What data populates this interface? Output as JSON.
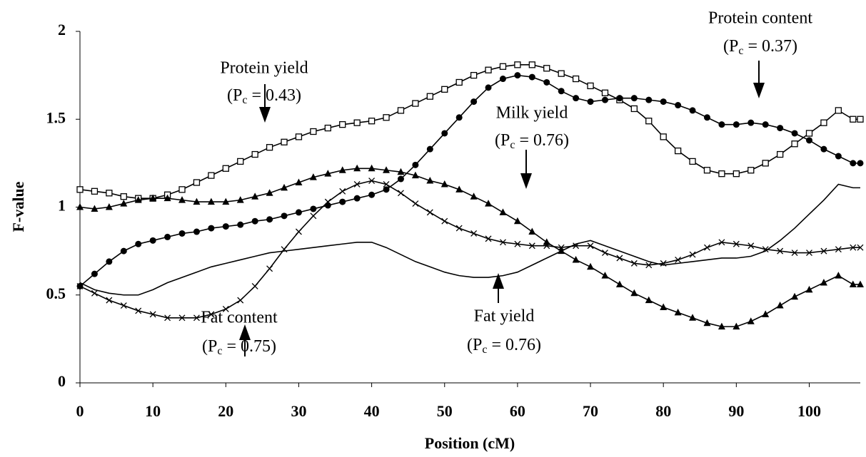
{
  "chart_data": {
    "type": "line",
    "x_label": "Position (cM)",
    "y_label": "F-value",
    "x": [
      0,
      2,
      4,
      6,
      8,
      10,
      12,
      14,
      16,
      18,
      20,
      22,
      24,
      26,
      28,
      30,
      32,
      34,
      36,
      38,
      40,
      42,
      44,
      46,
      48,
      50,
      52,
      54,
      56,
      58,
      60,
      62,
      64,
      66,
      68,
      70,
      72,
      74,
      76,
      78,
      80,
      82,
      84,
      86,
      88,
      90,
      92,
      94,
      96,
      98,
      100,
      102,
      104,
      106,
      107
    ],
    "xlim": [
      0,
      107
    ],
    "xticks": [
      0,
      10,
      20,
      30,
      40,
      50,
      60,
      70,
      80,
      90,
      100
    ],
    "ylim": [
      0,
      2
    ],
    "yticks": [
      0,
      0.5,
      1,
      1.5,
      2
    ],
    "series": [
      {
        "name": "Protein yield",
        "color": "#000000",
        "marker": "square",
        "values": [
          1.1,
          1.09,
          1.08,
          1.06,
          1.05,
          1.05,
          1.07,
          1.1,
          1.14,
          1.18,
          1.22,
          1.26,
          1.3,
          1.34,
          1.37,
          1.4,
          1.43,
          1.45,
          1.47,
          1.48,
          1.49,
          1.51,
          1.55,
          1.59,
          1.63,
          1.67,
          1.71,
          1.75,
          1.78,
          1.8,
          1.81,
          1.81,
          1.79,
          1.76,
          1.73,
          1.69,
          1.65,
          1.61,
          1.56,
          1.49,
          1.4,
          1.32,
          1.26,
          1.21,
          1.19,
          1.19,
          1.21,
          1.25,
          1.3,
          1.36,
          1.42,
          1.48,
          1.55,
          1.5,
          1.5
        ]
      },
      {
        "name": "Protein content",
        "color": "#000000",
        "marker": "circle",
        "values": [
          0.55,
          0.62,
          0.69,
          0.75,
          0.79,
          0.81,
          0.83,
          0.85,
          0.86,
          0.88,
          0.89,
          0.9,
          0.92,
          0.93,
          0.95,
          0.97,
          0.99,
          1.01,
          1.03,
          1.05,
          1.07,
          1.1,
          1.16,
          1.24,
          1.33,
          1.42,
          1.51,
          1.6,
          1.68,
          1.73,
          1.75,
          1.74,
          1.71,
          1.66,
          1.62,
          1.6,
          1.61,
          1.62,
          1.62,
          1.61,
          1.6,
          1.58,
          1.55,
          1.51,
          1.47,
          1.47,
          1.48,
          1.47,
          1.45,
          1.42,
          1.38,
          1.33,
          1.29,
          1.25,
          1.25
        ]
      },
      {
        "name": "Milk yield",
        "color": "#000000",
        "marker": "triangle",
        "values": [
          1.0,
          0.99,
          1.0,
          1.02,
          1.04,
          1.05,
          1.05,
          1.04,
          1.03,
          1.03,
          1.03,
          1.04,
          1.06,
          1.08,
          1.11,
          1.14,
          1.17,
          1.19,
          1.21,
          1.22,
          1.22,
          1.21,
          1.2,
          1.18,
          1.15,
          1.13,
          1.1,
          1.06,
          1.02,
          0.97,
          0.92,
          0.86,
          0.8,
          0.75,
          0.7,
          0.66,
          0.61,
          0.56,
          0.51,
          0.47,
          0.43,
          0.4,
          0.37,
          0.34,
          0.32,
          0.32,
          0.35,
          0.39,
          0.44,
          0.49,
          0.53,
          0.57,
          0.61,
          0.56,
          0.56
        ]
      },
      {
        "name": "Fat content",
        "color": "#000000",
        "marker": "cross",
        "values": [
          0.55,
          0.51,
          0.47,
          0.44,
          0.41,
          0.39,
          0.37,
          0.37,
          0.37,
          0.39,
          0.42,
          0.47,
          0.55,
          0.65,
          0.76,
          0.86,
          0.95,
          1.03,
          1.09,
          1.13,
          1.15,
          1.13,
          1.08,
          1.02,
          0.97,
          0.92,
          0.88,
          0.85,
          0.82,
          0.8,
          0.79,
          0.78,
          0.78,
          0.77,
          0.78,
          0.78,
          0.74,
          0.71,
          0.68,
          0.67,
          0.68,
          0.7,
          0.73,
          0.77,
          0.8,
          0.79,
          0.78,
          0.76,
          0.75,
          0.74,
          0.74,
          0.75,
          0.76,
          0.77,
          0.77
        ]
      },
      {
        "name": "Fat yield",
        "color": "#000000",
        "marker": "none",
        "values": [
          0.57,
          0.53,
          0.51,
          0.5,
          0.5,
          0.53,
          0.57,
          0.6,
          0.63,
          0.66,
          0.68,
          0.7,
          0.72,
          0.74,
          0.75,
          0.76,
          0.77,
          0.78,
          0.79,
          0.8,
          0.8,
          0.77,
          0.73,
          0.69,
          0.66,
          0.63,
          0.61,
          0.6,
          0.6,
          0.61,
          0.63,
          0.67,
          0.71,
          0.75,
          0.79,
          0.81,
          0.78,
          0.75,
          0.72,
          0.69,
          0.67,
          0.68,
          0.69,
          0.7,
          0.71,
          0.71,
          0.72,
          0.75,
          0.81,
          0.88,
          0.96,
          1.04,
          1.13,
          1.11,
          1.11
        ]
      }
    ],
    "annotations": [
      {
        "series": 0,
        "label": [
          "(P",
          "c",
          " = 0.43)"
        ]
      },
      {
        "series": 1,
        "label": [
          "(P",
          "c",
          " = 0.37)"
        ]
      },
      {
        "series": 2,
        "label": [
          "(P",
          "c",
          " = 0.76)"
        ]
      },
      {
        "series": 3,
        "label": [
          "(P",
          "c",
          " = 0.75)"
        ]
      },
      {
        "series": 4,
        "label": [
          "(P",
          "c",
          " = 0.76)"
        ]
      }
    ]
  }
}
